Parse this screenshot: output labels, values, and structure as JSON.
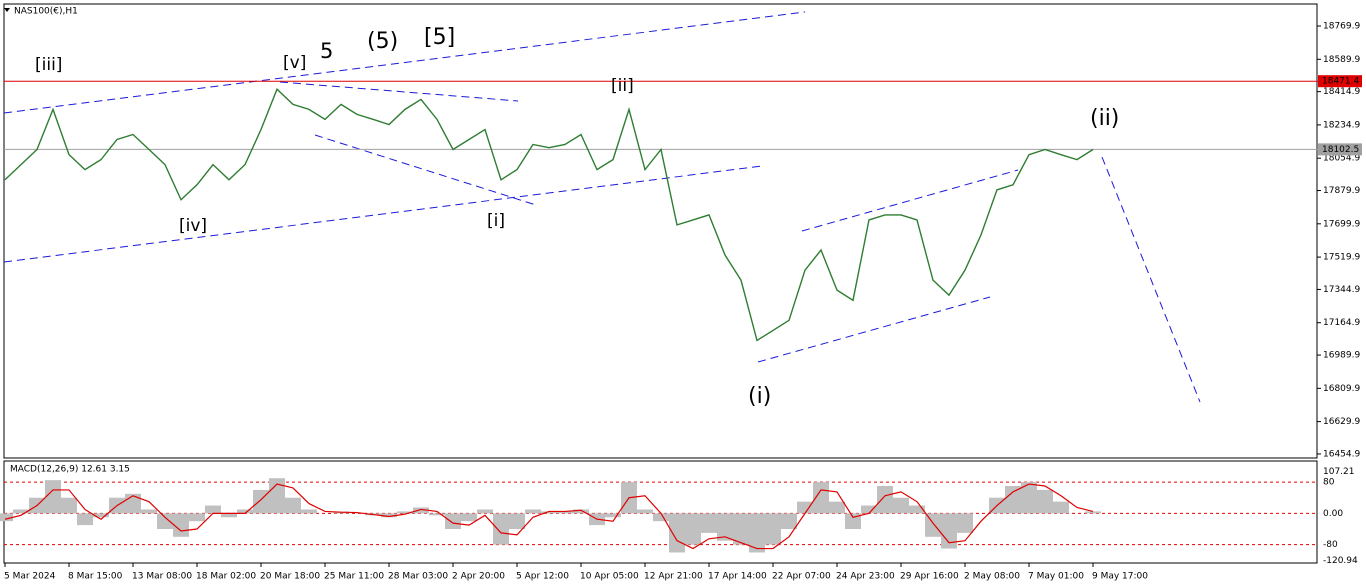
{
  "chart_data": [
    {
      "type": "line",
      "title": "NAS100(€),H1",
      "categories": [
        "5 Mar 2024",
        null,
        null,
        null,
        "8 Mar 15:00",
        null,
        null,
        null,
        "13 Mar 08:00",
        null,
        null,
        null,
        "18 Mar 02:00",
        null,
        null,
        null,
        "20 Mar 18:00",
        null,
        null,
        null,
        "25 Mar 11:00",
        null,
        null,
        null,
        "28 Mar 03:00",
        null,
        null,
        null,
        "2 Apr 20:00",
        null,
        null,
        null,
        "5 Apr 12:00",
        null,
        null,
        null,
        "10 Apr 05:00",
        null,
        null,
        null,
        "12 Apr 21:00",
        null,
        null,
        null,
        "17 Apr 14:00",
        null,
        null,
        null,
        "22 Apr 07:00",
        null,
        null,
        null,
        "24 Apr 23:00",
        null,
        null,
        null,
        "29 Apr 16:00",
        null,
        null,
        null,
        "2 May 08:00",
        null,
        null,
        null,
        "7 May 01:00",
        null,
        null,
        null,
        "9 May 17:00"
      ],
      "values": [
        17938,
        18020,
        18102,
        18319,
        18074,
        17993,
        18047,
        18156,
        18183,
        18102,
        18020,
        17830,
        17911,
        18020,
        17938,
        18020,
        18210,
        18428,
        18346,
        18319,
        18265,
        18346,
        18292,
        18265,
        18237,
        18319,
        18373,
        18265,
        18102,
        18156,
        18210,
        17938,
        17993,
        18129,
        18112,
        18129,
        18183,
        17993,
        18047,
        18319,
        17993,
        18102,
        17694,
        17721,
        17748,
        17531,
        17395,
        17069,
        17123,
        17178,
        17449,
        17558,
        17341,
        17286,
        17721,
        17748,
        17748,
        17721,
        17395,
        17314,
        17449,
        17640,
        17884,
        17911,
        18074,
        18102,
        18074,
        18047,
        18102
      ],
      "color": "#2e7d32",
      "ylim": [
        16433,
        18889
      ],
      "yticks": [
        18769.9,
        18589.9,
        18414.9,
        18234.9,
        18054.9,
        17879.9,
        17699.9,
        17519.9,
        17344.9,
        17164.9,
        16989.9,
        16809.9,
        16629.9,
        16454.9
      ],
      "levels": [
        {
          "value": 18471.4,
          "color": "#e00000"
        },
        {
          "value": 18102.5,
          "color": "#a0a0a0"
        }
      ],
      "annotations": [
        {
          "text": "[iii]",
          "color": "#2e8b22"
        },
        {
          "text": "[v]",
          "color": "#2e8b22"
        },
        {
          "text": "5",
          "color": "#1a1adb"
        },
        {
          "text": "(5)",
          "color": "#e01010"
        },
        {
          "text": "[5]",
          "color": "#000000"
        },
        {
          "text": "[ii]",
          "color": "#2e8b22"
        },
        {
          "text": "[iv]",
          "color": "#2e8b22"
        },
        {
          "text": "[i]",
          "color": "#2e8b22"
        },
        {
          "text": "(i)",
          "color": "#1a1adb"
        },
        {
          "text": "(ii)",
          "color": "#1a1adb"
        }
      ]
    },
    {
      "type": "macd",
      "title": "MACD(12,26,9) 12.61 3.15",
      "series": [
        {
          "color": "#c0c0c0",
          "values": [
            -20,
            10,
            40,
            85,
            40,
            -30,
            -10,
            40,
            50,
            10,
            -40,
            -60,
            -20,
            20,
            -10,
            10,
            60,
            90,
            40,
            10,
            0,
            5,
            0,
            -5,
            -10,
            5,
            15,
            -5,
            -40,
            -20,
            10,
            -80,
            -40,
            10,
            5,
            5,
            10,
            -30,
            -10,
            80,
            10,
            -20,
            -100,
            -80,
            -50,
            -70,
            -80,
            -100,
            -80,
            -40,
            30,
            80,
            30,
            -40,
            20,
            70,
            40,
            20,
            -60,
            -90,
            -50,
            0,
            40,
            70,
            80,
            60,
            30,
            0,
            5
          ]
        },
        {
          "color": "#e00000",
          "values": [
            -15,
            -5,
            20,
            60,
            60,
            10,
            -15,
            20,
            45,
            30,
            -10,
            -45,
            -40,
            0,
            0,
            0,
            35,
            75,
            65,
            25,
            5,
            3,
            2,
            -3,
            -8,
            -2,
            10,
            5,
            -25,
            -30,
            -5,
            -50,
            -55,
            -10,
            5,
            5,
            8,
            -15,
            -20,
            40,
            45,
            0,
            -70,
            -90,
            -65,
            -60,
            -75,
            -90,
            -90,
            -60,
            0,
            60,
            55,
            -10,
            0,
            45,
            55,
            30,
            -25,
            -75,
            -70,
            -20,
            20,
            55,
            75,
            70,
            45,
            15,
            5
          ]
        }
      ],
      "ylim": [
        -127,
        134
      ],
      "yticks": [
        107.21,
        80,
        {
          "value": 0,
          "label": "0.00"
        },
        -80,
        -120.94
      ]
    }
  ]
}
